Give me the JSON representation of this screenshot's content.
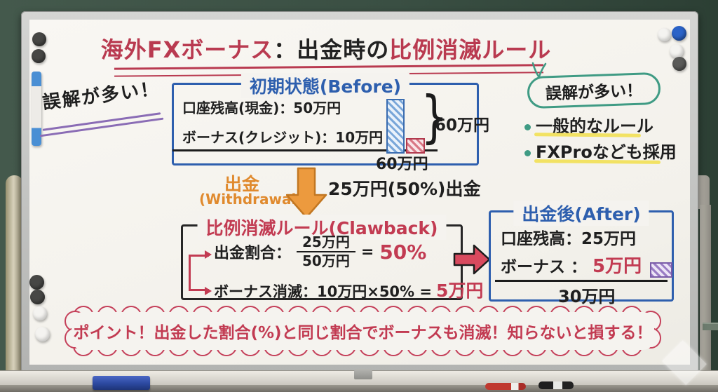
{
  "title": {
    "red1": "海外FXボーナス",
    "black": "：出金時の",
    "red2": "比例消滅ルール"
  },
  "left_note": "誤解が多い！",
  "before_box": {
    "title": "初期状態(Before)",
    "row1": "口座残高(現金)：50万円",
    "row2": "ボーナス(クレジット)：10万円",
    "brace_total": "60万円",
    "bottom_total": "60万円"
  },
  "withdrawal": {
    "label": "出金",
    "sub": "(Withdrawal)",
    "note": "25万円(50%)出金"
  },
  "clawback_box": {
    "title": "比例消滅ルール(Clawback)",
    "row1_label": "出金割合：",
    "fraction_top": "25万円",
    "fraction_bottom": "50万円",
    "equals": "=",
    "row1_result": "50%",
    "row2_label": "ボーナス消滅：10万円×50% =",
    "row2_result": "5万円"
  },
  "after_box": {
    "title": "出金後(After)",
    "row1": "口座残高：25万円",
    "row2_label": "ボーナス ：",
    "row2_value": "5万円",
    "total": "30万円"
  },
  "right_notes": {
    "bubble": "誤解が多い！",
    "bullets": [
      "一般的なルール",
      "FXProなども採用"
    ]
  },
  "banner": "ポイント！出金した割合(%)と同じ割合でボーナスも消滅！知らないと損する！",
  "brace_glyph": "}",
  "colors": {
    "red": "#c23b52",
    "blue": "#2e5fae",
    "orange": "#e08a2e",
    "green": "#3f9b84",
    "yellow": "#f2e263",
    "purple": "#8a6cb5"
  },
  "chart_data": [
    {
      "type": "bar",
      "title": "初期状態(Before)",
      "categories": [
        "口座残高(現金)",
        "ボーナス(クレジット)"
      ],
      "values": [
        50,
        10
      ],
      "unit": "万円",
      "total": 60
    },
    {
      "type": "bar",
      "title": "出金後(After)",
      "categories": [
        "口座残高",
        "ボーナス"
      ],
      "values": [
        25,
        5
      ],
      "unit": "万円",
      "total": 30
    }
  ]
}
